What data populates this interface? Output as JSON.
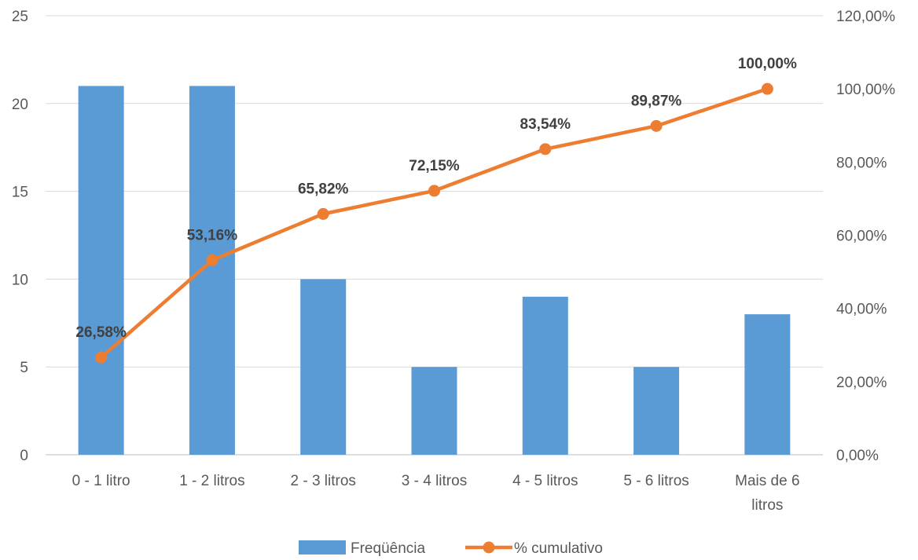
{
  "chart_data": {
    "type": "bar",
    "categories": [
      "0 - 1 litro",
      "1 - 2 litros",
      "2 - 3 litros",
      "3 - 4 litros",
      "4 - 5 litros",
      "5 - 6 litros",
      "Mais de 6 litros"
    ],
    "series": [
      {
        "name": "Freqüência",
        "type": "bar",
        "axis": "left",
        "color": "#5B9BD5",
        "values": [
          21,
          21,
          10,
          5,
          9,
          5,
          8
        ]
      },
      {
        "name": "% cumulativo",
        "type": "line",
        "axis": "right",
        "color": "#ED7D31",
        "values": [
          26.58,
          53.16,
          65.82,
          72.15,
          83.54,
          89.87,
          100.0
        ],
        "labels": [
          "26,58%",
          "53,16%",
          "65,82%",
          "72,15%",
          "83,54%",
          "89,87%",
          "100,00%"
        ]
      }
    ],
    "y_left": {
      "min": 0,
      "max": 25,
      "ticks": [
        "0",
        "5",
        "10",
        "15",
        "20",
        "25"
      ]
    },
    "y_right": {
      "min": 0,
      "max": 120,
      "ticks": [
        "0,00%",
        "20,00%",
        "40,00%",
        "60,00%",
        "80,00%",
        "100,00%",
        "120,00%"
      ]
    },
    "grid": true,
    "legend_position": "bottom",
    "title": "",
    "xlabel": "",
    "ylabel": ""
  }
}
